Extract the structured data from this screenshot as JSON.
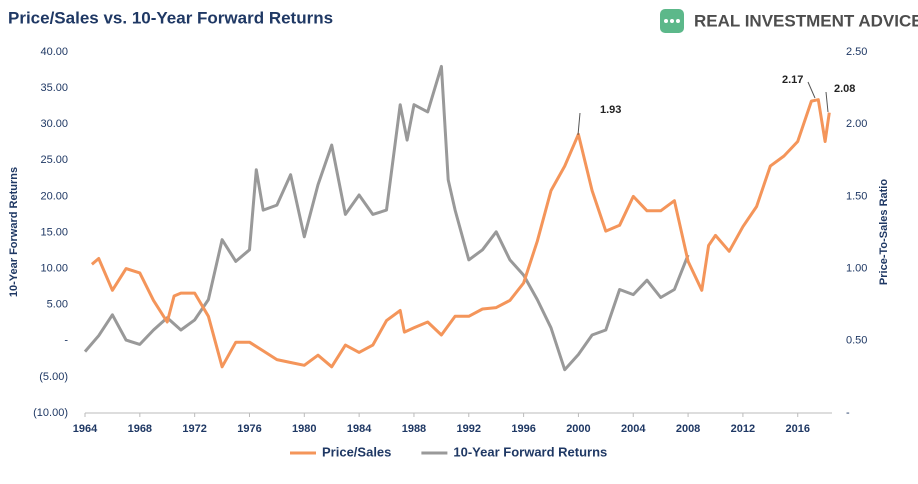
{
  "chart_data": {
    "type": "line",
    "title": "Price/Sales vs. 10-Year Forward Returns",
    "logo": "REAL INVESTMENT ADVICE",
    "ylabel": "10-Year Forward Returns",
    "y2label": "Price-To-Sales Ratio",
    "xlim": [
      1964,
      2018.5
    ],
    "xticks": [
      1964,
      1968,
      1972,
      1976,
      1980,
      1984,
      1988,
      1992,
      1996,
      2000,
      2004,
      2008,
      2012,
      2016
    ],
    "ylim": [
      -10,
      40
    ],
    "yticks": [
      {
        "value": 40,
        "label": "40.00"
      },
      {
        "value": 35,
        "label": "35.00"
      },
      {
        "value": 30,
        "label": "30.00"
      },
      {
        "value": 25,
        "label": "25.00"
      },
      {
        "value": 20,
        "label": "20.00"
      },
      {
        "value": 15,
        "label": "15.00"
      },
      {
        "value": 10,
        "label": "10.00"
      },
      {
        "value": 5,
        "label": "5.00"
      },
      {
        "value": 0,
        "label": "-"
      },
      {
        "value": -5,
        "label": "(5.00)"
      },
      {
        "value": -10,
        "label": "(10.00)"
      }
    ],
    "y2lim": [
      0,
      2.5
    ],
    "y2ticks": [
      {
        "value": 2.5,
        "label": "2.50"
      },
      {
        "value": 2,
        "label": "2.00"
      },
      {
        "value": 1.5,
        "label": "1.50"
      },
      {
        "value": 1,
        "label": "1.00"
      },
      {
        "value": 0.5,
        "label": "0.50"
      },
      {
        "value": 0,
        "label": "-"
      }
    ],
    "series": [
      {
        "name": "Price/Sales",
        "color": "#f4955a",
        "axis": "y2",
        "x": [
          1964.5,
          1965,
          1966,
          1967,
          1968,
          1969,
          1970,
          1970.5,
          1971,
          1972,
          1973,
          1974,
          1975,
          1976,
          1977,
          1978,
          1979,
          1980,
          1981,
          1982,
          1983,
          1984,
          1985,
          1986,
          1987,
          1987.3,
          1988,
          1989,
          1990,
          1991,
          1992,
          1993,
          1994,
          1995,
          1996,
          1997,
          1998,
          1999,
          2000,
          2001,
          2002,
          2003,
          2004,
          2005,
          2006,
          2007,
          2008,
          2009,
          2009.5,
          2010,
          2011,
          2012,
          2013,
          2014,
          2015,
          2016,
          2017,
          2017.5,
          2018,
          2018.3
        ],
        "values": [
          1.03,
          1.07,
          0.85,
          1.0,
          0.97,
          0.78,
          0.63,
          0.81,
          0.83,
          0.83,
          0.67,
          0.32,
          0.49,
          0.49,
          0.43,
          0.37,
          0.35,
          0.33,
          0.4,
          0.32,
          0.47,
          0.42,
          0.47,
          0.64,
          0.71,
          0.56,
          0.59,
          0.63,
          0.54,
          0.67,
          0.67,
          0.72,
          0.73,
          0.78,
          0.9,
          1.19,
          1.54,
          1.71,
          1.93,
          1.54,
          1.26,
          1.3,
          1.5,
          1.4,
          1.4,
          1.47,
          1.05,
          0.85,
          1.16,
          1.23,
          1.12,
          1.29,
          1.43,
          1.71,
          1.78,
          1.88,
          2.16,
          2.17,
          1.88,
          2.08
        ]
      },
      {
        "name": "10-Year Forward Returns",
        "color": "#999999",
        "axis": "y",
        "x": [
          1964,
          1965,
          1966,
          1967,
          1968,
          1969,
          1970,
          1971,
          1972,
          1973,
          1974,
          1975,
          1976,
          1976.5,
          1977,
          1978,
          1979,
          1980,
          1981,
          1982,
          1983,
          1984,
          1985,
          1986,
          1987,
          1987.5,
          1988,
          1989,
          1990,
          1990.5,
          1991,
          1992,
          1993,
          1994,
          1995,
          1996,
          1997,
          1998,
          1999,
          2000,
          2001,
          2002,
          2003,
          2004,
          2005,
          2006,
          2007,
          2008
        ],
        "values": [
          -1.5,
          0.7,
          3.6,
          0.1,
          -0.5,
          1.5,
          3.2,
          1.5,
          2.9,
          5.7,
          14,
          11,
          12.6,
          23.7,
          18.1,
          18.8,
          23,
          14.4,
          21.6,
          27.1,
          17.5,
          20.2,
          17.5,
          18.1,
          32.7,
          27.8,
          32.7,
          31.7,
          38,
          22.3,
          18.1,
          11.2,
          12.6,
          15.1,
          11.2,
          9.1,
          5.7,
          1.8,
          -4,
          -1.9,
          0.8,
          1.5,
          7.1,
          6.4,
          8.4,
          6,
          7.1,
          11.9
        ]
      }
    ],
    "annotations": [
      "1.93",
      "2.17",
      "2.08"
    ]
  }
}
